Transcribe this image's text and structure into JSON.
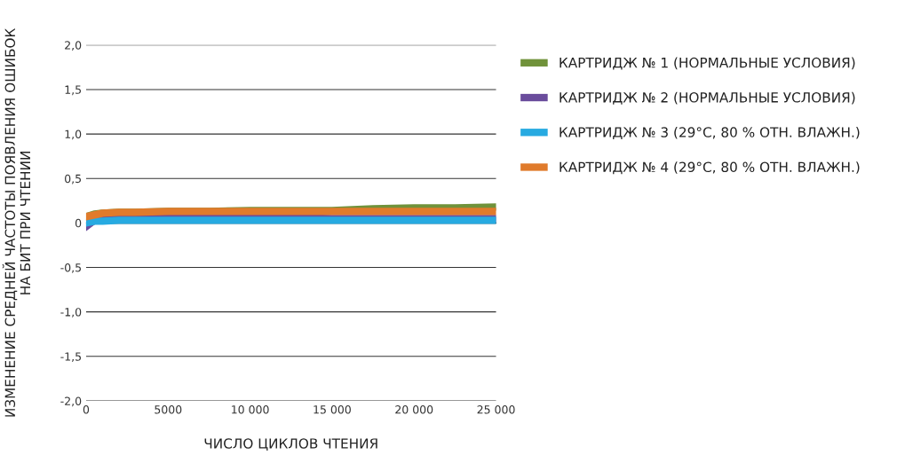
{
  "chart_data": {
    "type": "line",
    "xlabel": "ЧИСЛО ЦИКЛОВ ЧТЕНИЯ",
    "ylabel": "ИЗМЕНЕНИЕ СРЕДНЕЙ ЧАСТОТЫ ПОЯВЛЕНИЯ ОШИБОК\nНА БИТ ПРИ ЧТЕНИИ",
    "x": [
      0,
      500,
      1000,
      2000,
      3000,
      5000,
      7500,
      10000,
      12500,
      15000,
      17500,
      20000,
      22500,
      25000
    ],
    "series": [
      {
        "name": "КАРТРИДЖ № 1 (НОРМАЛЬНЫЕ УСЛОВИЯ)",
        "color": "#70923a",
        "values": [
          0.07,
          0.1,
          0.11,
          0.12,
          0.12,
          0.13,
          0.13,
          0.14,
          0.14,
          0.14,
          0.16,
          0.17,
          0.17,
          0.18
        ]
      },
      {
        "name": "КАРТРИДЖ № 2 (НОРМАЛЬНЫЕ УСЛОВИЯ)",
        "color": "#6a4c9c",
        "values": [
          -0.04,
          0.03,
          0.04,
          0.05,
          0.05,
          0.06,
          0.07,
          0.07,
          0.06,
          0.05,
          0.05,
          0.05,
          0.05,
          0.05
        ]
      },
      {
        "name": "КАРТРИДЖ № 3 (29°C, 80 % ОТН. ВЛАЖН.)",
        "color": "#27aae1",
        "values": [
          0.0,
          0.02,
          0.02,
          0.03,
          0.03,
          0.03,
          0.03,
          0.03,
          0.03,
          0.03,
          0.03,
          0.03,
          0.03,
          0.03
        ]
      },
      {
        "name": "КАРТРИДЖ № 4 (29°C, 80 % ОТН. ВЛАЖН.)",
        "color": "#e07b2c",
        "values": [
          0.07,
          0.09,
          0.11,
          0.12,
          0.12,
          0.13,
          0.13,
          0.13,
          0.13,
          0.13,
          0.13,
          0.13,
          0.13,
          0.13
        ]
      }
    ],
    "xlim": [
      0,
      25000
    ],
    "xticks": [
      0,
      5000,
      {
        "value": 10000,
        "label": "10 000"
      },
      {
        "value": 15000,
        "label": "15 000"
      },
      {
        "value": 20000,
        "label": "20 000"
      },
      {
        "value": 25000,
        "label": "25 000"
      }
    ],
    "ylim": [
      -2,
      2
    ],
    "yticks": [
      {
        "value": -2,
        "label": "-2,0"
      },
      {
        "value": -1.5,
        "label": "-1,5"
      },
      {
        "value": -1,
        "label": "-1,0"
      },
      {
        "value": -0.5,
        "label": "-0,5"
      },
      0,
      {
        "value": 0.5,
        "label": "0,5"
      },
      {
        "value": 1,
        "label": "1,0"
      },
      {
        "value": 1.5,
        "label": "1,5"
      },
      {
        "value": 2,
        "label": "2,0"
      }
    ],
    "ref_lines": [
      {
        "axis": "y",
        "value": 0,
        "color": "#000000"
      }
    ],
    "grid": "y",
    "legend": "right",
    "marker": "none",
    "line_style": "solid"
  }
}
